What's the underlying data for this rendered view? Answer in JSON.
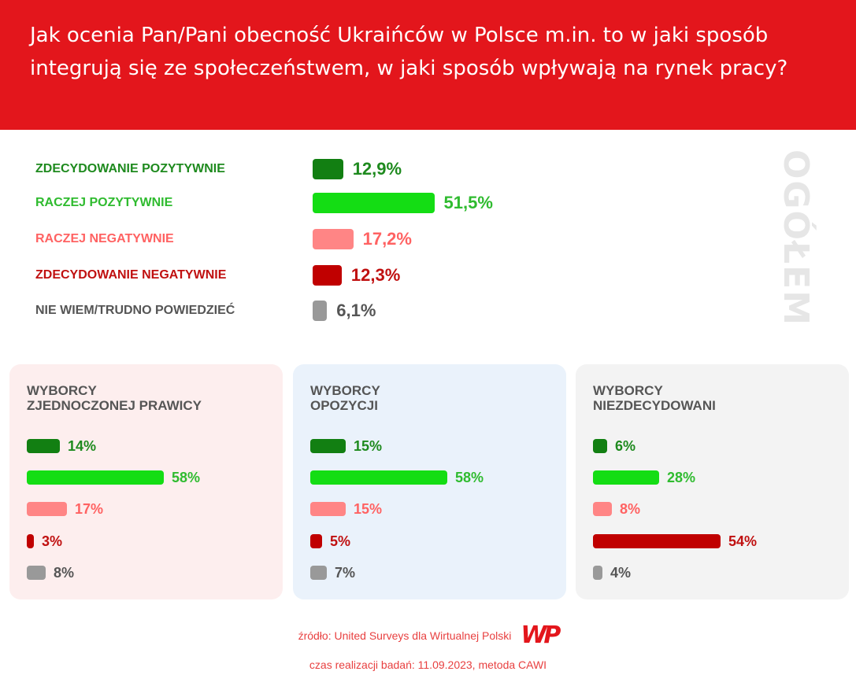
{
  "title": "Jak ocenia Pan/Pani obecność Ukraińców w Polsce m.in. to w jaki sposób integrują się ze społeczeństwem, w jaki sposób wpływają na rynek pracy?",
  "chart_data": {
    "type": "bar",
    "orientation": "horizontal",
    "unit": "%",
    "categories": [
      "ZDECYDOWANIE POZYTYWNIE",
      "RACZEJ POZYTYWNIE",
      "RACZEJ NEGATYWNIE",
      "ZDECYDOWANIE NEGATYWNIE",
      "NIE WIEM/TRUDNO POWIEDZIEĆ"
    ],
    "colors": [
      "#127f12",
      "#14dd14",
      "#ff8585",
      "#c00000",
      "#999999"
    ],
    "label_colors": [
      "#1e8a1e",
      "#2fbb2f",
      "#ff6262",
      "#c01010",
      "#555555"
    ],
    "overall": {
      "label": "OGÓŁEM",
      "values": [
        12.9,
        51.5,
        17.2,
        12.3,
        6.1
      ],
      "value_labels": [
        "12,9%",
        "51,5%",
        "17,2%",
        "12,3%",
        "6,1%"
      ]
    },
    "groups": [
      {
        "name": "WYBORCY\nZJEDNOCZONEJ PRAWICY",
        "bg": "#fdeeee",
        "values": [
          14,
          58,
          17,
          3,
          8
        ],
        "value_labels": [
          "14%",
          "58%",
          "17%",
          "3%",
          "8%"
        ]
      },
      {
        "name": "WYBORCY\nOPOZYCJI",
        "bg": "#eaf2fb",
        "values": [
          15,
          58,
          15,
          5,
          7
        ],
        "value_labels": [
          "15%",
          "58%",
          "15%",
          "5%",
          "7%"
        ]
      },
      {
        "name": "WYBORCY\nNIEZDECYDOWANI",
        "bg": "#f3f3f3",
        "values": [
          6,
          28,
          8,
          54,
          4
        ],
        "value_labels": [
          "6%",
          "28%",
          "8%",
          "54%",
          "4%"
        ]
      }
    ]
  },
  "footer": {
    "source": "źródło: United Surveys dla Wirtualnej Polski",
    "logo": "WP",
    "date": "czas realizacji badań: 11.09.2023, metoda CAWI"
  }
}
